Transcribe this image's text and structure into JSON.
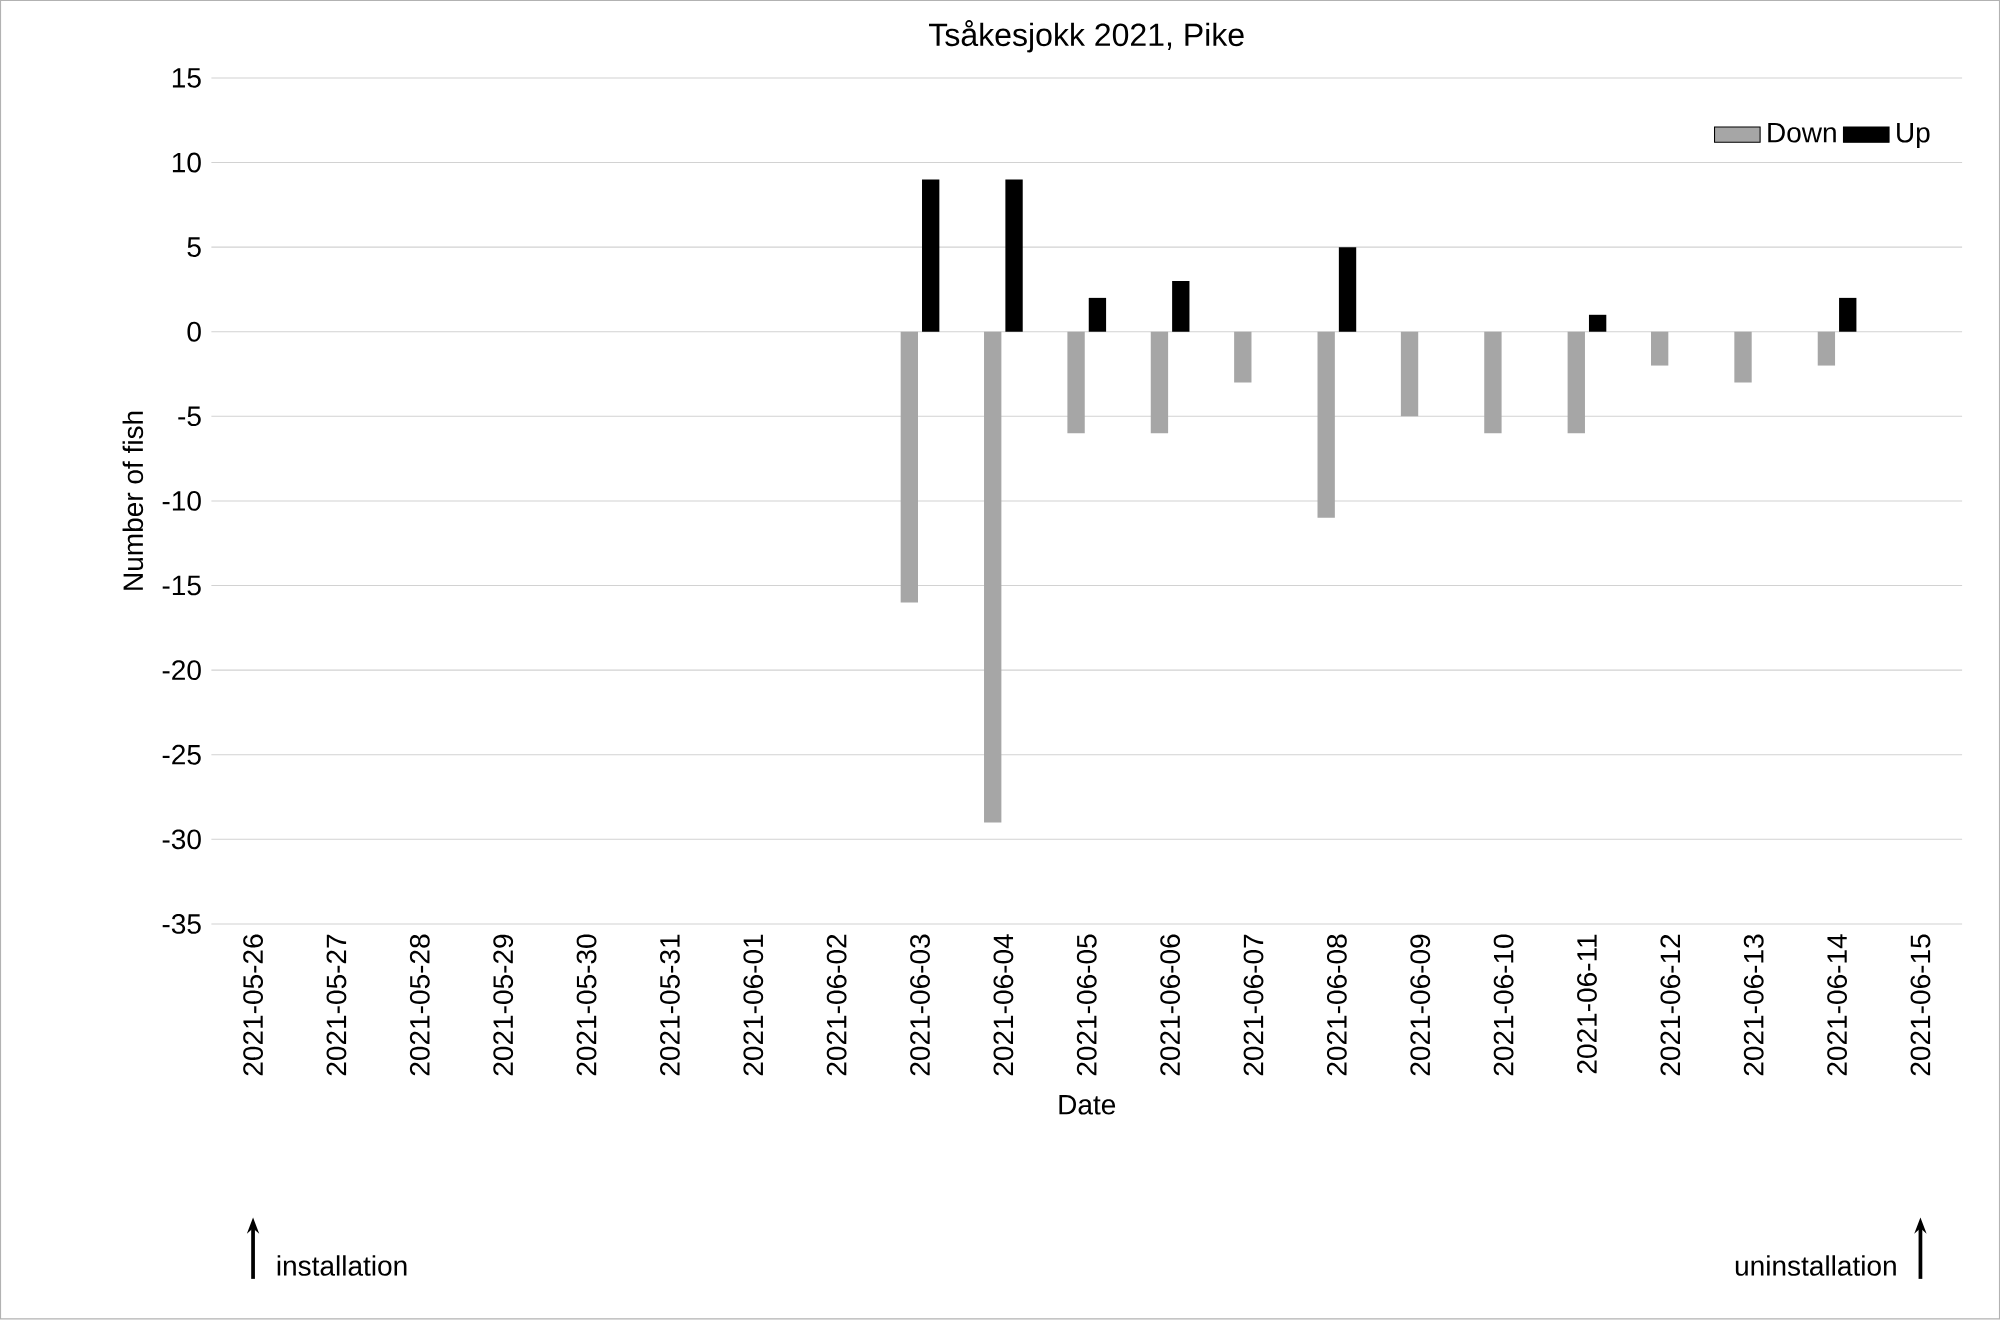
{
  "chart_data": {
    "type": "bar",
    "title": "Tsåkesjokk 2021, Pike",
    "xlabel": "Date",
    "ylabel": "Number of fish",
    "categories": [
      "2021-05-26",
      "2021-05-27",
      "2021-05-28",
      "2021-05-29",
      "2021-05-30",
      "2021-05-31",
      "2021-06-01",
      "2021-06-02",
      "2021-06-03",
      "2021-06-04",
      "2021-06-05",
      "2021-06-06",
      "2021-06-07",
      "2021-06-08",
      "2021-06-09",
      "2021-06-10",
      "2021-06-11",
      "2021-06-12",
      "2021-06-13",
      "2021-06-14",
      "2021-06-15"
    ],
    "series": [
      {
        "name": "Down",
        "color": "#a6a6a6",
        "values": [
          0,
          0,
          0,
          0,
          0,
          0,
          0,
          0,
          -16,
          -29,
          -6,
          -6,
          -3,
          -11,
          -5,
          -6,
          -6,
          -2,
          -3,
          -2,
          0
        ]
      },
      {
        "name": "Up",
        "color": "#000000",
        "values": [
          0,
          0,
          0,
          0,
          0,
          0,
          0,
          0,
          9,
          9,
          2,
          3,
          0,
          5,
          0,
          0,
          1,
          0,
          0,
          2,
          0
        ]
      }
    ],
    "ylim": [
      -35,
      15
    ],
    "yticks": [
      -35,
      -30,
      -25,
      -20,
      -15,
      -10,
      -5,
      0,
      5,
      10,
      15
    ],
    "grid": "y",
    "legend": "top right",
    "annotations": [
      "installation",
      "uninstallation"
    ]
  }
}
